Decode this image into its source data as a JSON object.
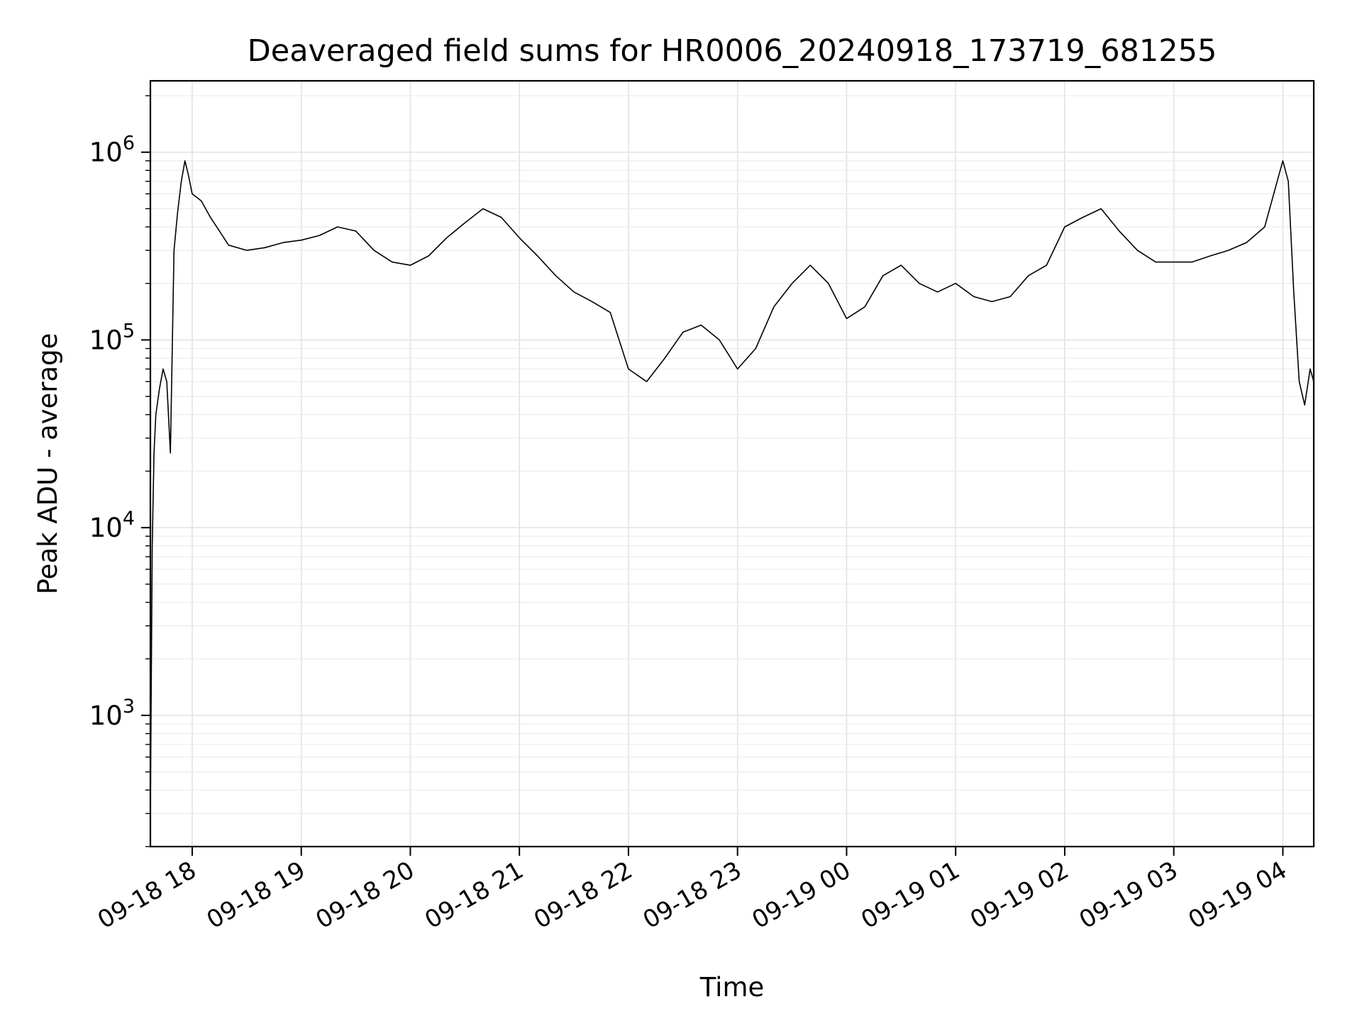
{
  "chart_data": {
    "type": "line",
    "title": "Deaveraged field sums for HR0006_20240918_173719_681255",
    "xlabel": "Time",
    "ylabel": "Peak ADU - average",
    "y_scale": "log",
    "ylim": [
      200,
      2400000
    ],
    "xlim": [
      "2024-09-18 17:37",
      "2024-09-19 04:17"
    ],
    "grid": true,
    "line_color": "#000000",
    "x_ticks": [
      {
        "t": "2024-09-18 18:00",
        "label": "09-18 18"
      },
      {
        "t": "2024-09-18 19:00",
        "label": "09-18 19"
      },
      {
        "t": "2024-09-18 20:00",
        "label": "09-18 20"
      },
      {
        "t": "2024-09-18 21:00",
        "label": "09-18 21"
      },
      {
        "t": "2024-09-18 22:00",
        "label": "09-18 22"
      },
      {
        "t": "2024-09-18 23:00",
        "label": "09-18 23"
      },
      {
        "t": "2024-09-19 00:00",
        "label": "09-19 00"
      },
      {
        "t": "2024-09-19 01:00",
        "label": "09-19 01"
      },
      {
        "t": "2024-09-19 02:00",
        "label": "09-19 02"
      },
      {
        "t": "2024-09-19 03:00",
        "label": "09-19 03"
      },
      {
        "t": "2024-09-19 04:00",
        "label": "09-19 04"
      }
    ],
    "y_ticks": [
      {
        "v": 1000,
        "base": "10",
        "exp": "3"
      },
      {
        "v": 10000,
        "base": "10",
        "exp": "4"
      },
      {
        "v": 100000,
        "base": "10",
        "exp": "5"
      },
      {
        "v": 1000000,
        "base": "10",
        "exp": "6"
      }
    ],
    "series": [
      {
        "x": [
          "2024-09-18 17:37",
          "2024-09-18 17:38",
          "2024-09-18 17:39",
          "2024-09-18 17:40",
          "2024-09-18 17:42",
          "2024-09-18 17:44",
          "2024-09-18 17:46",
          "2024-09-18 17:48",
          "2024-09-18 17:50",
          "2024-09-18 17:52",
          "2024-09-18 17:54",
          "2024-09-18 17:56",
          "2024-09-18 17:58",
          "2024-09-18 18:00",
          "2024-09-18 18:05",
          "2024-09-18 18:10",
          "2024-09-18 18:15",
          "2024-09-18 18:20",
          "2024-09-18 18:30",
          "2024-09-18 18:40",
          "2024-09-18 18:50",
          "2024-09-18 19:00",
          "2024-09-18 19:10",
          "2024-09-18 19:20",
          "2024-09-18 19:30",
          "2024-09-18 19:40",
          "2024-09-18 19:50",
          "2024-09-18 20:00",
          "2024-09-18 20:10",
          "2024-09-18 20:20",
          "2024-09-18 20:30",
          "2024-09-18 20:40",
          "2024-09-18 20:50",
          "2024-09-18 21:00",
          "2024-09-18 21:10",
          "2024-09-18 21:20",
          "2024-09-18 21:30",
          "2024-09-18 21:40",
          "2024-09-18 21:50",
          "2024-09-18 22:00",
          "2024-09-18 22:10",
          "2024-09-18 22:20",
          "2024-09-18 22:30",
          "2024-09-18 22:40",
          "2024-09-18 22:50",
          "2024-09-18 23:00",
          "2024-09-18 23:10",
          "2024-09-18 23:20",
          "2024-09-18 23:30",
          "2024-09-18 23:40",
          "2024-09-18 23:50",
          "2024-09-19 00:00",
          "2024-09-19 00:10",
          "2024-09-19 00:20",
          "2024-09-19 00:30",
          "2024-09-19 00:40",
          "2024-09-19 00:50",
          "2024-09-19 01:00",
          "2024-09-19 01:10",
          "2024-09-19 01:20",
          "2024-09-19 01:30",
          "2024-09-19 01:40",
          "2024-09-19 01:50",
          "2024-09-19 02:00",
          "2024-09-19 02:10",
          "2024-09-19 02:20",
          "2024-09-19 02:30",
          "2024-09-19 02:40",
          "2024-09-19 02:50",
          "2024-09-19 03:00",
          "2024-09-19 03:10",
          "2024-09-19 03:20",
          "2024-09-19 03:30",
          "2024-09-19 03:40",
          "2024-09-19 03:50",
          "2024-09-19 04:00",
          "2024-09-19 04:03",
          "2024-09-19 04:06",
          "2024-09-19 04:09",
          "2024-09-19 04:12",
          "2024-09-19 04:15",
          "2024-09-19 04:17"
        ],
        "y": [
          300,
          8000,
          25000,
          40000,
          55000,
          70000,
          60000,
          25000,
          300000,
          480000,
          700000,
          900000,
          750000,
          600000,
          550000,
          450000,
          380000,
          320000,
          300000,
          310000,
          330000,
          340000,
          360000,
          400000,
          380000,
          300000,
          260000,
          250000,
          280000,
          350000,
          420000,
          500000,
          450000,
          350000,
          280000,
          220000,
          180000,
          160000,
          140000,
          70000,
          60000,
          80000,
          110000,
          120000,
          100000,
          70000,
          90000,
          150000,
          200000,
          250000,
          200000,
          130000,
          150000,
          220000,
          250000,
          200000,
          180000,
          200000,
          170000,
          160000,
          170000,
          220000,
          250000,
          400000,
          450000,
          500000,
          380000,
          300000,
          260000,
          260000,
          260000,
          280000,
          300000,
          330000,
          400000,
          900000,
          700000,
          180000,
          60000,
          45000,
          70000,
          60000
        ]
      }
    ]
  }
}
